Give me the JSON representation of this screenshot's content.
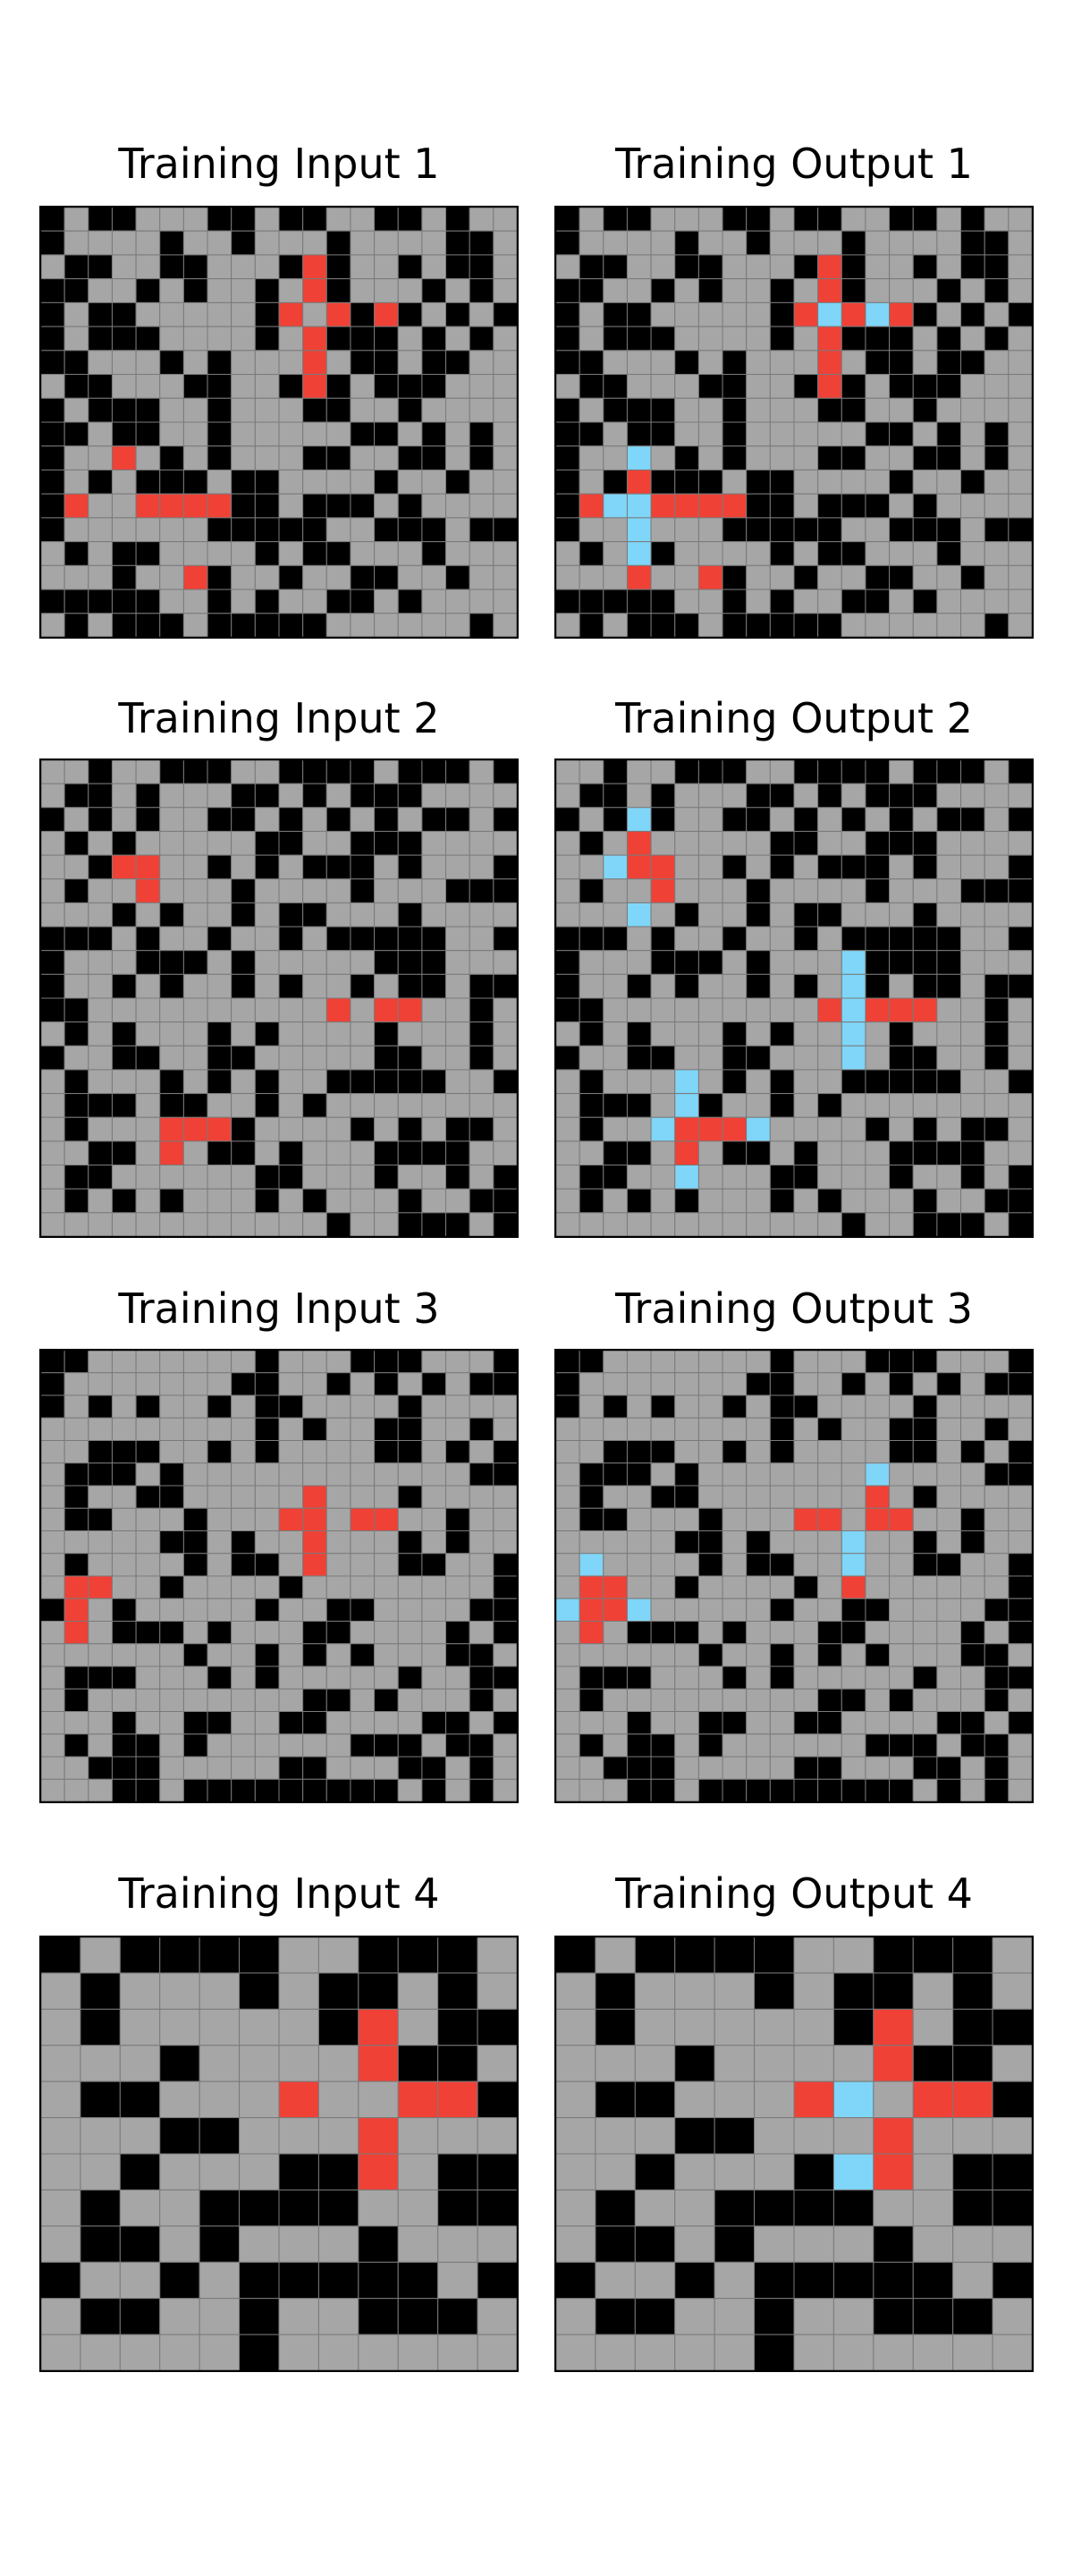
{
  "colors": {
    "0": "#000000",
    "1": "#a6a6a6",
    "2": "#ef4136",
    "3": "#7fd6f8",
    "line": "#7a7a7a",
    "border": "#000000"
  },
  "palette": {
    "0": "black",
    "1": "gray",
    "2": "red",
    "3": "light-blue"
  },
  "panels": [
    {
      "title": "Training Input 1",
      "grid": [
        "01001110010011001011",
        "01111011011101111001",
        "10011001110201101001",
        "00110101101201110101",
        "01001111102120201010",
        "01000111101200010101",
        "00111010111210010011",
        "10011100110201000111",
        "01000110111001101111",
        "00100110111110010101",
        "01121010111001100101",
        "01010001001111011011",
        "02112222001000101111",
        "01111110000011000100",
        "10100111101001110111",
        "11101120110110011011",
        "00000110101100101111",
        "10100010000011111101"
      ]
    },
    {
      "title": "Training Output 1",
      "grid": [
        "01001110010011001011",
        "01111011011101111001",
        "10011001110201101001",
        "00110101101201110101",
        "01001111102323201010",
        "01000111101200010101",
        "00111010111210010011",
        "10011100110201000111",
        "01000110111001101111",
        "00100110111110010101",
        "01131010111001100101",
        "01020001001111011011",
        "02332222001000101111",
        "01131110000011000100",
        "10130111101001110111",
        "11121120110110011011",
        "00000110101100101111",
        "10100010000011111101"
      ]
    },
    {
      "title": "Training Input 2",
      "grid": [
        "11011000110000100010",
        "10010111001010001111",
        "01010110010101010010",
        "10101111100110001111",
        "11022110101000101110",
        "10112111011110111000",
        "11101011010011101111",
        "00010110110100000110",
        "01110001011111000111",
        "01101011010110100100",
        "00111111111121221101",
        "10101110101111011101",
        "01100110011111001101",
        "10111010101100000110",
        "10001001101011111111",
        "10111222011110101001",
        "11001210010111000011",
        "10011111100111011010",
        "10101011101011101100",
        "11111111111101100010"
      ]
    },
    {
      "title": "Training Output 2",
      "grid": [
        "11011000110000100010",
        "10010111001010001111",
        "01030110010101010010",
        "10121111100110001111",
        "11322110101000101110",
        "10112111011110111000",
        "11131011010011101111",
        "00010110110100000110",
        "01110001011130000111",
        "01101011010130100100",
        "00111111111232221101",
        "10101110101131011101",
        "01100110011131001101",
        "10111310101100000110",
        "10001301101011111111",
        "10113222311110101001",
        "11001210010111000011",
        "10011311100111011010",
        "10101011101011101100",
        "11111111111101100010"
      ]
    },
    {
      "title": "Training Input 3",
      "grid": [
        "00111111101110001110",
        "01111111001101010100",
        "01010110100111101111",
        "11111111101011001101",
        "11000110101111001010",
        "10001011111111111100",
        "10110011111211101111",
        "10011101112212211011",
        "11111001011211101011",
        "10111101001211100110",
        "12211011110111111110",
        "02101111101100111100",
        "12100010111001111010",
        "11111101101010111001",
        "10001110101111101100",
        "10111111111001011101",
        "11101100110011110010",
        "10100101111110001001",
        "11000111110011100101",
        "11100100000000010101"
      ]
    },
    {
      "title": "Training Output 3",
      "grid": [
        "00111111101110001110",
        "01111111001101010100",
        "01010110100111101111",
        "11111111101011001101",
        "11000110101111001010",
        "10001011111113111100",
        "10110011111112101111",
        "10011101112212211011",
        "11111001011131101011",
        "13111101001131100110",
        "12211011110121111110",
        "32231111101100111100",
        "12100010111001111010",
        "11111101101010111001",
        "10001110101111101100",
        "10111111111001011101",
        "11101100110011110010",
        "10100101111110001001",
        "11000111110011100101",
        "11100100000000010101"
      ]
    },
    {
      "title": "Training Input 4",
      "grid": [
        "010000110001",
        "101110100101",
        "101111102100",
        "111011112001",
        "100111211220",
        "111001112111",
        "110111002100",
        "101100001100",
        "100101110111",
        "011010000010",
        "100110110001",
        "111110111111"
      ]
    },
    {
      "title": "Training Output 4",
      "grid": [
        "010000110001",
        "101110100101",
        "101111102100",
        "111011112001",
        "100111231220",
        "111001112111",
        "110111032100",
        "101100001100",
        "100101110111",
        "011010000010",
        "100110110001",
        "111110111111"
      ]
    }
  ]
}
